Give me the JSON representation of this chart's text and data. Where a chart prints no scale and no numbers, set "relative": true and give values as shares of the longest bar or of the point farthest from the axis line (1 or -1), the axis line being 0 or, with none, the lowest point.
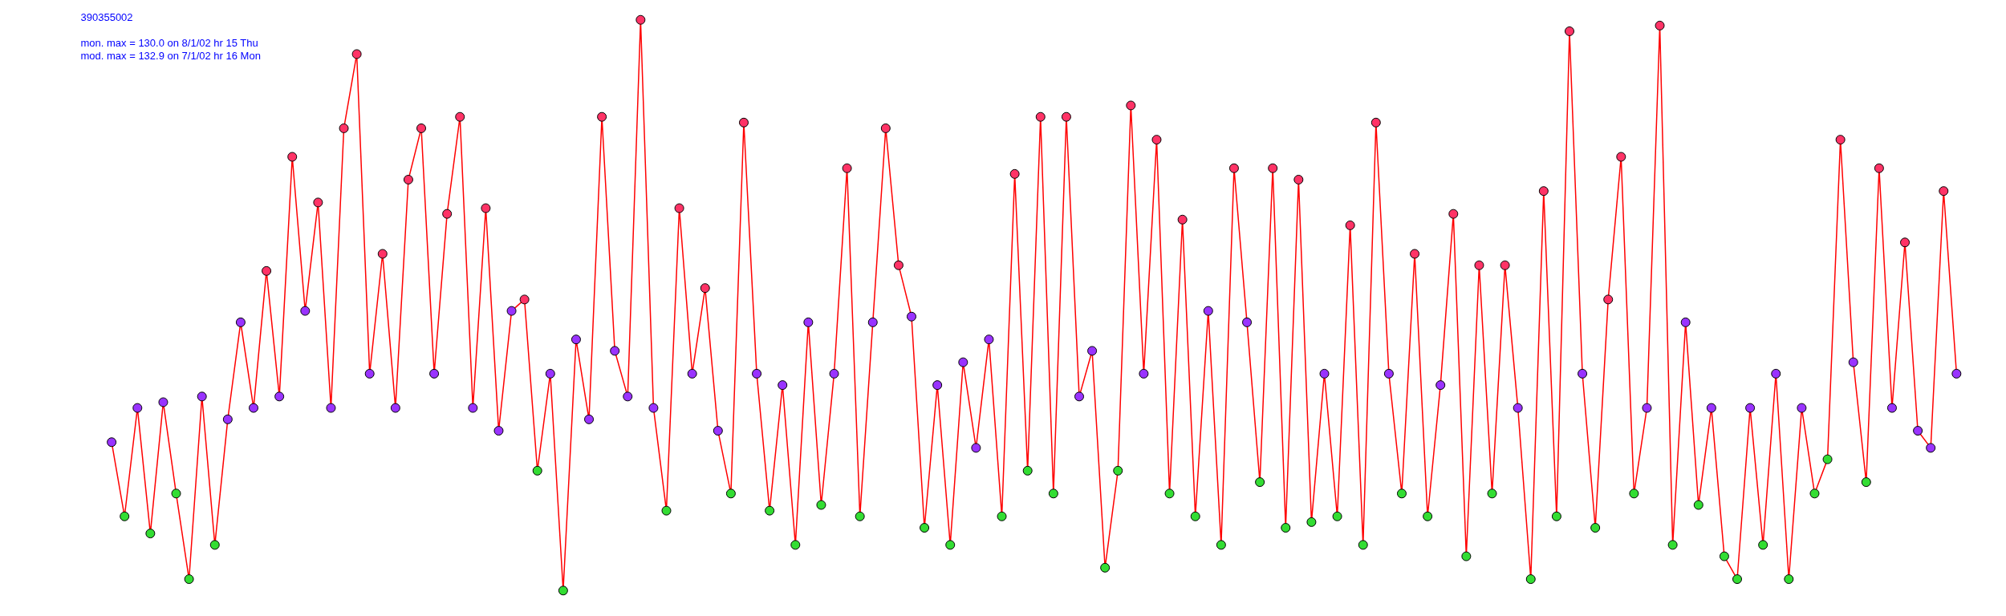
{
  "chart_data": {
    "type": "line",
    "title": "390355002",
    "annotations": [
      "mon. max =   130.0 on 8/1/02 hr 15 Thu",
      "mod. max =   132.9 on 7/1/02 hr 16 Mon"
    ],
    "relative": true,
    "marker": "circle",
    "grid": false,
    "tick_labels": false,
    "categories": [
      null,
      null,
      null,
      null,
      null,
      null,
      null,
      null,
      null,
      null,
      null,
      null,
      null,
      null,
      null,
      null,
      null,
      null,
      null,
      null,
      null,
      null,
      null,
      null,
      null,
      null,
      null,
      null,
      null,
      null,
      null,
      null,
      null,
      null,
      null,
      null,
      null,
      null,
      null,
      null,
      null,
      null,
      null,
      null,
      null,
      null,
      null,
      null,
      null,
      null,
      null,
      null,
      null,
      null,
      null,
      null,
      null,
      null,
      null,
      null,
      null,
      null,
      null,
      null,
      null,
      null,
      null,
      null,
      null,
      null,
      null,
      null,
      null,
      null,
      null,
      null,
      null,
      null,
      null,
      null,
      null,
      null,
      null,
      null,
      null,
      null,
      null,
      null,
      null,
      null,
      null,
      null,
      null,
      null,
      null,
      null,
      null,
      null,
      null,
      null,
      null,
      null,
      null,
      null,
      null,
      null,
      null,
      null,
      null,
      null,
      null,
      null,
      null,
      null,
      null,
      null,
      null,
      null,
      null,
      null,
      null,
      null,
      null,
      null,
      null,
      null,
      null,
      null,
      null,
      null,
      null,
      null,
      null,
      null,
      null,
      null,
      null,
      null,
      null,
      null,
      null,
      null,
      null,
      null
    ],
    "series": [
      {
        "color": "#ff0000",
        "values": [
          0.26,
          0.13,
          0.32,
          0.1,
          0.33,
          0.17,
          0.02,
          0.34,
          0.08,
          0.3,
          0.47,
          0.32,
          0.56,
          0.34,
          0.76,
          0.49,
          0.68,
          0.32,
          0.81,
          0.94,
          0.38,
          0.59,
          0.32,
          0.72,
          0.81,
          0.38,
          0.66,
          0.83,
          0.32,
          0.67,
          0.28,
          0.49,
          0.51,
          0.21,
          0.38,
          0,
          0.44,
          0.3,
          0.83,
          0.42,
          0.34,
          1,
          0.32,
          0.14,
          0.67,
          0.38,
          0.53,
          0.28,
          0.17,
          0.82,
          0.38,
          0.14,
          0.36,
          0.08,
          0.47,
          0.15,
          0.38,
          0.74,
          0.13,
          0.47,
          0.81,
          0.57,
          0.48,
          0.11,
          0.36,
          0.08,
          0.4,
          0.25,
          0.44,
          0.13,
          0.73,
          0.21,
          0.83,
          0.17,
          0.83,
          0.34,
          0.42,
          0.04,
          0.21,
          0.85,
          0.38,
          0.79,
          0.17,
          0.65,
          0.13,
          0.49,
          0.08,
          0.74,
          0.47,
          0.19,
          0.74,
          0.11,
          0.72,
          0.12,
          0.38,
          0.13,
          0.64,
          0.08,
          0.82,
          0.38,
          0.17,
          0.59,
          0.13,
          0.36,
          0.66,
          0.06,
          0.57,
          0.17,
          0.57,
          0.32,
          0.02,
          0.7,
          0.13,
          0.98,
          0.38,
          0.11,
          0.51,
          0.76,
          0.17,
          0.32,
          0.99,
          0.08,
          0.47,
          0.15,
          0.32,
          0.06,
          0.02,
          0.32,
          0.08,
          0.38,
          0.02,
          0.32,
          0.17,
          0.23,
          0.79,
          0.4,
          0.19,
          0.74,
          0.32,
          0.61,
          0.28,
          0.25,
          0.7,
          0.38
        ],
        "colors": [
          "#9933ff",
          "#33dd33",
          "#9933ff",
          "#33dd33",
          "#9933ff",
          "#33dd33",
          "#33dd33",
          "#9933ff",
          "#33dd33",
          "#9933ff",
          "#9933ff",
          "#9933ff",
          "#ff3366",
          "#9933ff",
          "#ff3366",
          "#9933ff",
          "#ff3366",
          "#9933ff",
          "#ff3366",
          "#ff3366",
          "#9933ff",
          "#ff3366",
          "#9933ff",
          "#ff3366",
          "#ff3366",
          "#9933ff",
          "#ff3366",
          "#ff3366",
          "#9933ff",
          "#ff3366",
          "#9933ff",
          "#9933ff",
          "#ff3366",
          "#33dd33",
          "#9933ff",
          "#33dd33",
          "#9933ff",
          "#9933ff",
          "#ff3366",
          "#9933ff",
          "#9933ff",
          "#ff3366",
          "#9933ff",
          "#33dd33",
          "#ff3366",
          "#9933ff",
          "#ff3366",
          "#9933ff",
          "#33dd33",
          "#ff3366",
          "#9933ff",
          "#33dd33",
          "#9933ff",
          "#33dd33",
          "#9933ff",
          "#33dd33",
          "#9933ff",
          "#ff3366",
          "#33dd33",
          "#9933ff",
          "#ff3366",
          "#ff3366",
          "#9933ff",
          "#33dd33",
          "#9933ff",
          "#33dd33",
          "#9933ff",
          "#9933ff",
          "#9933ff",
          "#33dd33",
          "#ff3366",
          "#33dd33",
          "#ff3366",
          "#33dd33",
          "#ff3366",
          "#9933ff",
          "#9933ff",
          "#33dd33",
          "#33dd33",
          "#ff3366",
          "#9933ff",
          "#ff3366",
          "#33dd33",
          "#ff3366",
          "#33dd33",
          "#9933ff",
          "#33dd33",
          "#ff3366",
          "#9933ff",
          "#33dd33",
          "#ff3366",
          "#33dd33",
          "#ff3366",
          "#33dd33",
          "#9933ff",
          "#33dd33",
          "#ff3366",
          "#33dd33",
          "#ff3366",
          "#9933ff",
          "#33dd33",
          "#ff3366",
          "#33dd33",
          "#9933ff",
          "#ff3366",
          "#33dd33",
          "#ff3366",
          "#33dd33",
          "#ff3366",
          "#9933ff",
          "#33dd33",
          "#ff3366",
          "#33dd33",
          "#ff3366",
          "#9933ff",
          "#33dd33",
          "#ff3366",
          "#ff3366",
          "#33dd33",
          "#9933ff",
          "#ff3366",
          "#33dd33",
          "#9933ff",
          "#33dd33",
          "#9933ff",
          "#33dd33",
          "#33dd33",
          "#9933ff",
          "#33dd33",
          "#9933ff",
          "#33dd33",
          "#9933ff",
          "#33dd33",
          "#33dd33",
          "#ff3366",
          "#9933ff",
          "#33dd33",
          "#ff3366",
          "#9933ff",
          "#ff3366",
          "#9933ff",
          "#9933ff",
          "#ff3366",
          "#9933ff"
        ]
      }
    ]
  }
}
